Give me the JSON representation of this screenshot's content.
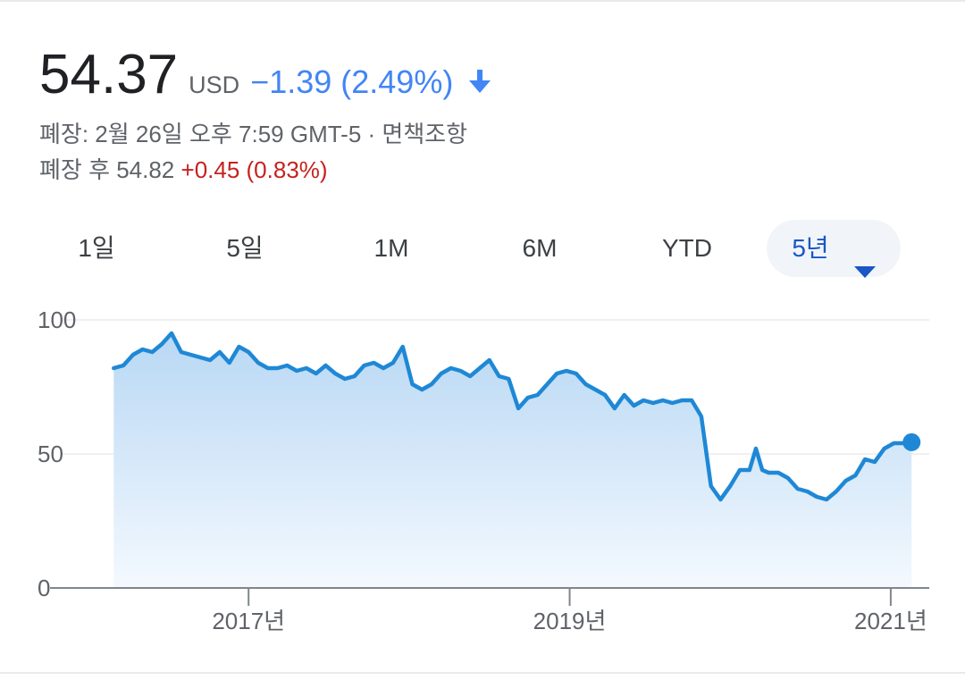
{
  "quote": {
    "price": "54.37",
    "currency": "USD",
    "change": "−1.39 (2.49%)",
    "direction_icon": "arrow-down-icon",
    "close_line": "폐장: 2월 26일 오후 7:59 GMT-5 · 면책조항",
    "after_hours_prefix": "폐장 후 54.82",
    "after_hours_change": "+0.45 (0.83%)"
  },
  "range_tabs": [
    {
      "label": "1일",
      "selected": false
    },
    {
      "label": "5일",
      "selected": false
    },
    {
      "label": "1M",
      "selected": false
    },
    {
      "label": "6M",
      "selected": false
    },
    {
      "label": "YTD",
      "selected": false
    },
    {
      "label": "5년",
      "selected": true
    }
  ],
  "colors": {
    "line": "#1f88d6",
    "fill_top": "#b8d8f4",
    "fill_bottom": "#f4f9fe",
    "negative": "#4285f4",
    "positive": "#c5221f",
    "selected_tab": "#1a56c4"
  },
  "chart_data": {
    "type": "area",
    "ylim": [
      0,
      100
    ],
    "y_ticks": [
      0,
      50,
      100
    ],
    "x_ticks": [
      {
        "value": 2017.0,
        "label": "2017년"
      },
      {
        "value": 2019.0,
        "label": "2019년"
      },
      {
        "value": 2021.0,
        "label": "2021년"
      }
    ],
    "xlim": [
      2015.83,
      2021.24
    ],
    "grid": true,
    "series": [
      {
        "x": [
          2016.16,
          2016.22,
          2016.28,
          2016.34,
          2016.4,
          2016.46,
          2016.52,
          2016.58,
          2016.64,
          2016.7,
          2016.76,
          2016.82,
          2016.88,
          2016.94,
          2017.0,
          2017.06,
          2017.12,
          2017.18,
          2017.24,
          2017.3,
          2017.36,
          2017.42,
          2017.48,
          2017.54,
          2017.6,
          2017.66,
          2017.72,
          2017.78,
          2017.84,
          2017.9,
          2017.96,
          2018.02,
          2018.08,
          2018.14,
          2018.2,
          2018.26,
          2018.32,
          2018.38,
          2018.44,
          2018.5,
          2018.56,
          2018.62,
          2018.68,
          2018.74,
          2018.8,
          2018.86,
          2018.92,
          2018.98,
          2019.04,
          2019.1,
          2019.16,
          2019.22,
          2019.28,
          2019.34,
          2019.4,
          2019.46,
          2019.52,
          2019.58,
          2019.64,
          2019.7,
          2019.76,
          2019.82,
          2019.88,
          2019.94,
          2020.0,
          2020.06,
          2020.12,
          2020.16,
          2020.2,
          2020.24,
          2020.3,
          2020.36,
          2020.42,
          2020.48,
          2020.54,
          2020.6,
          2020.66,
          2020.72,
          2020.78,
          2020.84,
          2020.9,
          2020.96,
          2021.02,
          2021.08,
          2021.13
        ],
        "y": [
          82,
          83,
          87,
          89,
          88,
          91,
          95,
          88,
          87,
          86,
          85,
          88,
          84,
          90,
          88,
          84,
          82,
          82,
          83,
          81,
          82,
          80,
          83,
          80,
          78,
          79,
          83,
          84,
          82,
          84,
          90,
          76,
          74,
          76,
          80,
          82,
          81,
          79,
          82,
          85,
          79,
          78,
          67,
          71,
          72,
          76,
          80,
          81,
          80,
          76,
          74,
          72,
          67,
          72,
          68,
          70,
          69,
          70,
          69,
          70,
          70,
          64,
          38,
          33,
          38,
          44,
          44,
          52,
          44,
          43,
          43,
          41,
          37,
          36,
          34,
          33,
          36,
          40,
          42,
          48,
          47,
          52,
          54,
          54,
          54.37
        ]
      }
    ]
  }
}
